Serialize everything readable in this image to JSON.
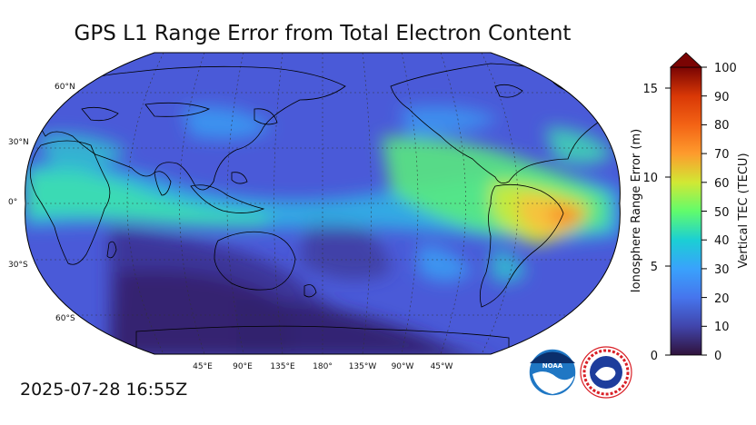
{
  "title": "GPS L1 Range Error from Total Electron Content",
  "timestamp": "2025-07-28 16:55Z",
  "map": {
    "projection": "Robinson",
    "lat_labels": [
      "60°N",
      "30°N",
      "0°",
      "30°S",
      "60°S"
    ],
    "lon_labels": [
      "45°E",
      "90°E",
      "135°E",
      "180°",
      "135°W",
      "90°W",
      "45°W"
    ],
    "ocean_color": "#4a5ad8",
    "coastline_color": "#000000",
    "gridlines": "dashed"
  },
  "colorbar": {
    "left_axis_title": "Ionosphere Range Error (m)",
    "left_ticks": [
      "0",
      "5",
      "10",
      "15"
    ],
    "right_axis_title": "Vertical TEC (TECU)",
    "right_ticks": [
      "0",
      "10",
      "20",
      "30",
      "40",
      "50",
      "60",
      "70",
      "80",
      "90",
      "100"
    ],
    "range_tecu": [
      0,
      100
    ],
    "range_m": [
      0,
      16.24
    ],
    "extend": "max",
    "colormap": [
      "#30123b",
      "#4145ab",
      "#4675ed",
      "#39a2fc",
      "#1bcfd4",
      "#24eca6",
      "#61fc6c",
      "#a4fc3b",
      "#d1e834",
      "#f3c63a",
      "#fe9b2d",
      "#f36315",
      "#d93806",
      "#b11901",
      "#7a0403"
    ]
  },
  "logos": {
    "noaa_text": "NOAA",
    "nws_text": "NATIONAL WEATHER SERVICE"
  }
}
